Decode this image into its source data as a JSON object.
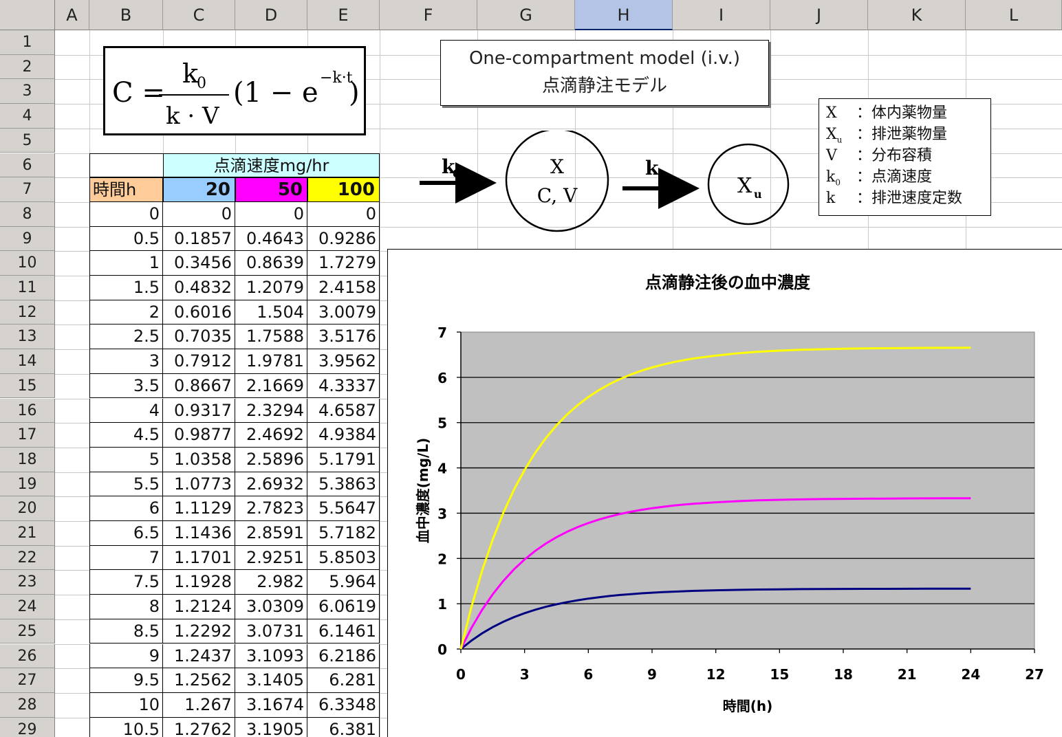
{
  "columns": [
    "A",
    "B",
    "C",
    "D",
    "E",
    "F",
    "G",
    "H",
    "I",
    "J",
    "K",
    "L"
  ],
  "selected_column": "H",
  "rows": [
    "1",
    "2",
    "3",
    "4",
    "5",
    "6",
    "7",
    "8",
    "9",
    "10",
    "11",
    "12",
    "13",
    "14",
    "15",
    "16",
    "17",
    "18",
    "19",
    "20",
    "21",
    "22",
    "23",
    "24",
    "25",
    "26",
    "27",
    "28",
    "29"
  ],
  "formula": {
    "lhs": "C =",
    "numerator": "k",
    "numerator_sub": "0",
    "denominator": "k · V",
    "paren_open": "(1 − e",
    "exponent": "−k·t",
    "paren_close": ")"
  },
  "model_title": {
    "line1": "One-compartment model (i.v.)",
    "line2": "点滴静注モデル"
  },
  "diagram": {
    "k0_label": "k",
    "k0_sub": "0",
    "compartment_line1": "X",
    "compartment_line2": "C, V",
    "k_label": "k",
    "excreted": "X",
    "excreted_sub": "u"
  },
  "legend": [
    {
      "sym": "X",
      "sub": "",
      "desc": "：体内薬物量"
    },
    {
      "sym": "X",
      "sub": "u",
      "desc": "：排泄薬物量"
    },
    {
      "sym": "V",
      "sub": "",
      "desc": "：分布容積"
    },
    {
      "sym": "k",
      "sub": "0",
      "desc": "：点滴速度"
    },
    {
      "sym": "k",
      "sub": "",
      "desc": "：排泄速度定数"
    }
  ],
  "table": {
    "rate_header": "点滴速度mg/hr",
    "time_header": "時間h",
    "rate_values": [
      "20",
      "50",
      "100"
    ],
    "rate_colors": [
      "#99ccff",
      "#ff00ff",
      "#ffff00"
    ],
    "rows": [
      [
        "0",
        "0",
        "0",
        "0"
      ],
      [
        "0.5",
        "0.1857",
        "0.4643",
        "0.9286"
      ],
      [
        "1",
        "0.3456",
        "0.8639",
        "1.7279"
      ],
      [
        "1.5",
        "0.4832",
        "1.2079",
        "2.4158"
      ],
      [
        "2",
        "0.6016",
        "1.504",
        "3.0079"
      ],
      [
        "2.5",
        "0.7035",
        "1.7588",
        "3.5176"
      ],
      [
        "3",
        "0.7912",
        "1.9781",
        "3.9562"
      ],
      [
        "3.5",
        "0.8667",
        "2.1669",
        "4.3337"
      ],
      [
        "4",
        "0.9317",
        "2.3294",
        "4.6587"
      ],
      [
        "4.5",
        "0.9877",
        "2.4692",
        "4.9384"
      ],
      [
        "5",
        "1.0358",
        "2.5896",
        "5.1791"
      ],
      [
        "5.5",
        "1.0773",
        "2.6932",
        "5.3863"
      ],
      [
        "6",
        "1.1129",
        "2.7823",
        "5.5647"
      ],
      [
        "6.5",
        "1.1436",
        "2.8591",
        "5.7182"
      ],
      [
        "7",
        "1.1701",
        "2.9251",
        "5.8503"
      ],
      [
        "7.5",
        "1.1928",
        "2.982",
        "5.964"
      ],
      [
        "8",
        "1.2124",
        "3.0309",
        "6.0619"
      ],
      [
        "8.5",
        "1.2292",
        "3.0731",
        "6.1461"
      ],
      [
        "9",
        "1.2437",
        "3.1093",
        "6.2186"
      ],
      [
        "9.5",
        "1.2562",
        "3.1405",
        "6.281"
      ],
      [
        "10",
        "1.267",
        "3.1674",
        "6.3348"
      ],
      [
        "10.5",
        "1.2762",
        "3.1905",
        "6.381"
      ]
    ]
  },
  "chart_data": {
    "type": "line",
    "title": "点滴静注後の血中濃度",
    "xlabel": "時間(h)",
    "ylabel": "血中濃度(mg/L)",
    "xlim": [
      0,
      27
    ],
    "ylim": [
      0,
      7
    ],
    "xticks": [
      0,
      3,
      6,
      9,
      12,
      15,
      18,
      21,
      24,
      27
    ],
    "yticks": [
      0,
      1,
      2,
      3,
      4,
      5,
      6,
      7
    ],
    "grid": true,
    "plot_background": "#c0c0c0",
    "x": [
      0,
      0.5,
      1,
      1.5,
      2,
      2.5,
      3,
      3.5,
      4,
      4.5,
      5,
      5.5,
      6,
      6.5,
      7,
      7.5,
      8,
      8.5,
      9,
      9.5,
      10,
      10.5,
      11,
      12,
      13,
      14,
      15,
      16,
      17,
      18,
      19,
      20,
      21,
      22,
      23,
      24
    ],
    "series": [
      {
        "color": "#000080",
        "values": [
          0,
          0.1857,
          0.3456,
          0.4832,
          0.6016,
          0.7035,
          0.7912,
          0.8667,
          0.9317,
          0.9877,
          1.0358,
          1.0773,
          1.1129,
          1.1436,
          1.1701,
          1.1928,
          1.2124,
          1.2292,
          1.2437,
          1.2562,
          1.267,
          1.2762,
          1.284,
          1.297,
          1.306,
          1.313,
          1.318,
          1.322,
          1.325,
          1.327,
          1.328,
          1.329,
          1.33,
          1.331,
          1.332,
          1.332
        ]
      },
      {
        "color": "#ff00ff",
        "values": [
          0,
          0.4643,
          0.8639,
          1.2079,
          1.504,
          1.7588,
          1.9781,
          2.1669,
          2.3294,
          2.4692,
          2.5896,
          2.6932,
          2.7823,
          2.8591,
          2.9251,
          2.982,
          3.0309,
          3.0731,
          3.1093,
          3.1405,
          3.1674,
          3.1905,
          3.21,
          3.24,
          3.265,
          3.283,
          3.295,
          3.304,
          3.311,
          3.316,
          3.32,
          3.323,
          3.325,
          3.327,
          3.328,
          3.329
        ]
      },
      {
        "color": "#ffff00",
        "values": [
          0,
          0.9286,
          1.7279,
          2.4158,
          3.0079,
          3.5176,
          3.9562,
          4.3337,
          4.6587,
          4.9384,
          5.1791,
          5.3863,
          5.5647,
          5.7182,
          5.8503,
          5.964,
          6.0619,
          6.1461,
          6.2186,
          6.281,
          6.3348,
          6.381,
          6.42,
          6.48,
          6.53,
          6.565,
          6.59,
          6.608,
          6.621,
          6.631,
          6.638,
          6.643,
          6.647,
          6.65,
          6.652,
          6.654
        ]
      }
    ]
  }
}
